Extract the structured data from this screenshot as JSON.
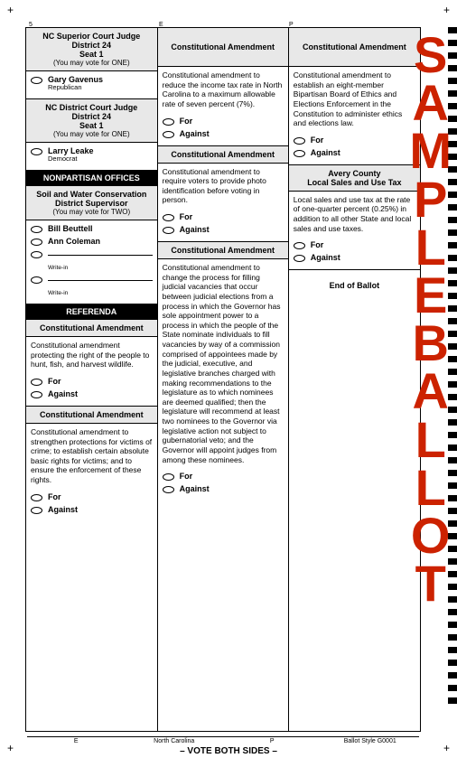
{
  "watermark": {
    "letters": [
      "S",
      "A",
      "M",
      "P",
      "L",
      "E",
      "B",
      "A",
      "L",
      "L",
      "O",
      "T"
    ],
    "color": "#cc2200"
  },
  "timing_marks": {
    "count": 54
  },
  "corners": {
    "tl": "+",
    "tr": "+",
    "bl": "+",
    "br": "+"
  },
  "top_regs": {
    "a": "5",
    "b": "E",
    "c": "P"
  },
  "col1": {
    "race1": {
      "title": "NC Superior Court Judge",
      "subtitle1": "District 24",
      "subtitle2": "Seat 1",
      "instruct": "(You may vote for ONE)",
      "candidates": [
        {
          "name": "Gary Gavenus",
          "party": "Republican"
        }
      ]
    },
    "race2": {
      "title": "NC District Court Judge",
      "subtitle1": "District 24",
      "subtitle2": "Seat 1",
      "instruct": "(You may vote for ONE)",
      "candidates": [
        {
          "name": "Larry Leake",
          "party": "Democrat"
        }
      ]
    },
    "bar1": "NONPARTISAN OFFICES",
    "race3": {
      "title": "Soil and Water Conservation",
      "subtitle1": "District Supervisor",
      "instruct": "(You may vote for TWO)",
      "candidates": [
        {
          "name": "Bill Beuttell"
        },
        {
          "name": "Ann Coleman"
        }
      ],
      "writein_label": "Write-in"
    },
    "bar2": "REFERENDA",
    "amend1": {
      "title": "Constitutional Amendment",
      "text": "Constitutional amendment protecting the right of the people to hunt, fish, and harvest wildlife.",
      "for": "For",
      "against": "Against"
    },
    "amend2": {
      "title": "Constitutional Amendment",
      "text": "Constitutional amendment to strengthen protections for victims of crime; to establish certain absolute basic rights for victims; and to ensure the enforcement of these rights.",
      "for": "For",
      "against": "Against"
    }
  },
  "col2": {
    "amend1": {
      "title": "Constitutional Amendment",
      "text": "Constitutional amendment to reduce the income tax rate in North Carolina to a maximum allowable rate of seven percent (7%).",
      "for": "For",
      "against": "Against"
    },
    "amend2": {
      "title": "Constitutional Amendment",
      "text": "Constitutional amendment to require voters to provide photo identification before voting in person.",
      "for": "For",
      "against": "Against"
    },
    "amend3": {
      "title": "Constitutional Amendment",
      "text": "Constitutional amendment to change the process for filling judicial vacancies that occur between judicial elections from a process in which the Governor has sole appointment power to a process in which the people of the State nominate individuals to fill vacancies by way of a commission comprised of appointees made by the judicial, executive, and legislative branches charged with making recommendations to the legislature as to which nominees are deemed qualified; then the legislature will recommend at least two nominees to the Governor via legislative action not subject to gubernatorial veto; and the Governor will appoint judges from among these nominees.",
      "for": "For",
      "against": "Against"
    }
  },
  "col3": {
    "amend1": {
      "title": "Constitutional Amendment",
      "text": "Constitutional amendment to establish an eight-member Bipartisan Board of Ethics and Elections Enforcement in the Constitution to administer ethics and elections law.",
      "for": "For",
      "against": "Against"
    },
    "local": {
      "title1": "Avery County",
      "title2": "Local Sales and Use Tax",
      "text": "Local sales and use tax at the rate of one-quarter percent (0.25%) in addition to all other State and local sales and use taxes.",
      "for": "For",
      "against": "Against"
    },
    "end": "End of Ballot"
  },
  "footer": {
    "cells": [
      "E",
      "North Carolina",
      "P",
      "Ballot Style G0001"
    ],
    "text": "– VOTE BOTH SIDES –"
  }
}
